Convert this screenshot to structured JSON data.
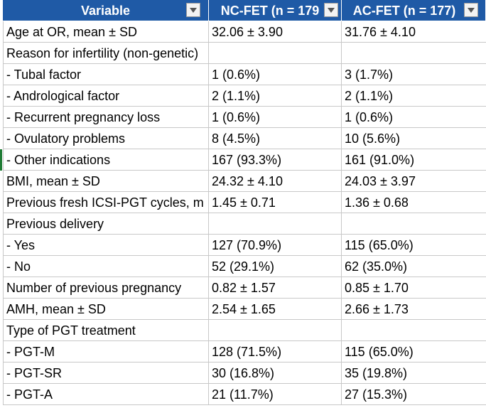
{
  "headers": {
    "variable": "Variable",
    "nc": "NC-FET (n = 179",
    "ac": "AC-FET (n = 177)"
  },
  "icons": {
    "filter": "chevron-down-icon"
  },
  "rows": [
    {
      "label": "Age at OR, mean ± SD",
      "nc": "32.06 ± 3.90",
      "ac": "31.76 ± 4.10"
    },
    {
      "label": "Reason for infertility (non-genetic)",
      "nc": "",
      "ac": ""
    },
    {
      "label": " - Tubal factor",
      "nc": "1 (0.6%)",
      "ac": "3 (1.7%)"
    },
    {
      "label": " - Andrological factor",
      "nc": "2 (1.1%)",
      "ac": "2 (1.1%)"
    },
    {
      "label": " - Recurrent pregnancy loss",
      "nc": "1 (0.6%)",
      "ac": "1 (0.6%)"
    },
    {
      "label": " - Ovulatory problems",
      "nc": "8 (4.5%)",
      "ac": "10 (5.6%)"
    },
    {
      "label": " - Other indications",
      "nc": "167 (93.3%)",
      "ac": "161 (91.0%)"
    },
    {
      "label": "BMI, mean ± SD",
      "nc": "24.32 ± 4.10",
      "ac": "24.03 ± 3.97"
    },
    {
      "label": "Previous fresh ICSI-PGT cycles, m",
      "nc": "1.45 ± 0.71",
      "ac": "1.36 ± 0.68"
    },
    {
      "label": "Previous delivery",
      "nc": "",
      "ac": ""
    },
    {
      "label": " - Yes",
      "nc": "127 (70.9%)",
      "ac": "115 (65.0%)"
    },
    {
      "label": " - No",
      "nc": "52 (29.1%)",
      "ac": "62 (35.0%)"
    },
    {
      "label": "Number of previous pregnancy",
      "nc": "0.82 ± 1.57",
      "ac": "0.85 ± 1.70"
    },
    {
      "label": "AMH, mean ± SD",
      "nc": "2.54 ± 1.65",
      "ac": "2.66 ± 1.73"
    },
    {
      "label": "Type of PGT treatment",
      "nc": "",
      "ac": ""
    },
    {
      "label": " - PGT-M",
      "nc": "128 (71.5%)",
      "ac": "115 (65.0%)"
    },
    {
      "label": " - PGT-SR",
      "nc": "30 (16.8%)",
      "ac": "35 (19.8%)"
    },
    {
      "label": " - PGT-A",
      "nc": "21 (11.7%)",
      "ac": "27 (15.3%)"
    }
  ]
}
